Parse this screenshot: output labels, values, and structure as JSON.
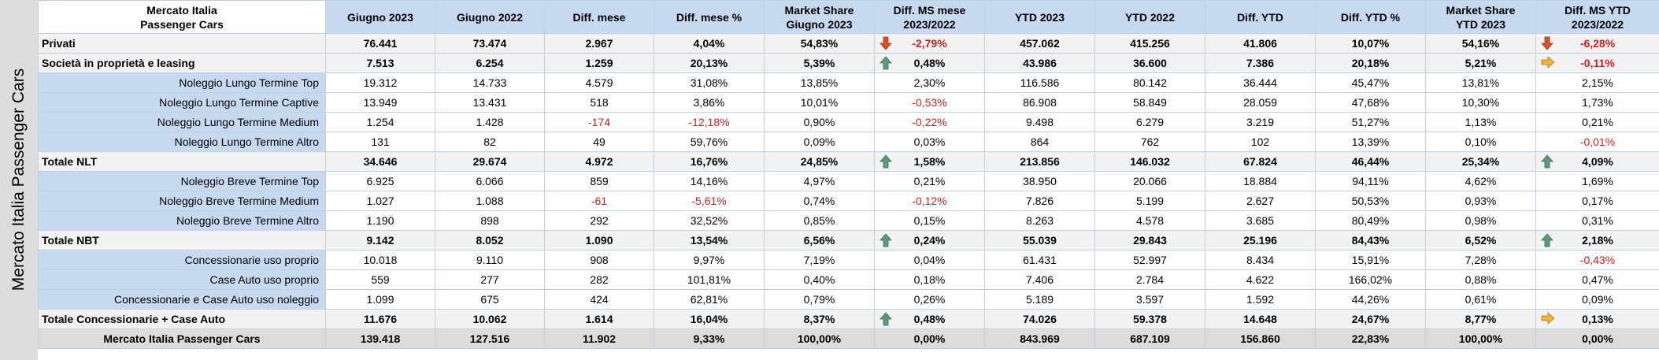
{
  "side_title": "Mercato Italia Passenger Cars",
  "header": {
    "corner": [
      "Mercato Italia",
      "Passenger Cars"
    ],
    "cols": [
      [
        "Giugno 2023"
      ],
      [
        "Giugno 2022"
      ],
      [
        "Diff. mese"
      ],
      [
        "Diff. mese %"
      ],
      [
        "Market Share",
        "Giugno 2023"
      ],
      [
        "Diff. MS mese",
        "2023/2022"
      ],
      [
        "YTD 2023"
      ],
      [
        "YTD 2022"
      ],
      [
        "Diff. YTD"
      ],
      [
        "Diff. YTD %"
      ],
      [
        "Market Share",
        "YTD 2023"
      ],
      [
        "Diff. MS YTD",
        "2023/2022"
      ]
    ]
  },
  "colors": {
    "up_arrow": "#5a9a78",
    "down_arrow": "#d9502b",
    "side_arrow": "#f0b040",
    "negative": "#d02020",
    "header_bg": "#c6d9ef"
  },
  "rows": [
    {
      "label": "Privati",
      "kind": "bold",
      "cells": [
        "76.441",
        "73.474",
        "2.967",
        "4,04%",
        "54,83%",
        "-2,79%",
        "457.062",
        "415.256",
        "41.806",
        "10,07%",
        "54,16%",
        "-6,28%"
      ],
      "icons": [
        "down-arrow-icon",
        "down-arrow-icon"
      ]
    },
    {
      "label": "Società in proprietà e leasing",
      "kind": "bold",
      "cells": [
        "7.513",
        "6.254",
        "1.259",
        "20,13%",
        "5,39%",
        "0,48%",
        "43.986",
        "36.600",
        "7.386",
        "20,18%",
        "5,21%",
        "-0,11%"
      ],
      "icons": [
        "up-arrow-icon",
        "right-arrow-icon"
      ]
    },
    {
      "label": "Noleggio Lungo Termine Top",
      "kind": "sub",
      "cells": [
        "19.312",
        "14.733",
        "4.579",
        "31,08%",
        "13,85%",
        "2,30%",
        "116.586",
        "80.142",
        "36.444",
        "45,47%",
        "13,81%",
        "2,15%"
      ]
    },
    {
      "label": "Noleggio Lungo Termine Captive",
      "kind": "sub",
      "cells": [
        "13.949",
        "13.431",
        "518",
        "3,86%",
        "10,01%",
        "-0,53%",
        "86.908",
        "58.849",
        "28.059",
        "47,68%",
        "10,30%",
        "1,73%"
      ]
    },
    {
      "label": "Noleggio Lungo Termine Medium",
      "kind": "sub",
      "cells": [
        "1.254",
        "1.428",
        "-174",
        "-12,18%",
        "0,90%",
        "-0,22%",
        "9.498",
        "6.279",
        "3.219",
        "51,27%",
        "1,13%",
        "0,21%"
      ]
    },
    {
      "label": "Noleggio Lungo Termine Altro",
      "kind": "sub",
      "cells": [
        "131",
        "82",
        "49",
        "59,76%",
        "0,09%",
        "0,03%",
        "864",
        "762",
        "102",
        "13,39%",
        "0,10%",
        "-0,01%"
      ]
    },
    {
      "label": "Totale NLT",
      "kind": "total",
      "cells": [
        "34.646",
        "29.674",
        "4.972",
        "16,76%",
        "24,85%",
        "1,58%",
        "213.856",
        "146.032",
        "67.824",
        "46,44%",
        "25,34%",
        "4,09%"
      ],
      "icons": [
        "up-arrow-icon",
        "up-arrow-icon"
      ]
    },
    {
      "label": "Noleggio Breve Termine Top",
      "kind": "sub",
      "cells": [
        "6.925",
        "6.066",
        "859",
        "14,16%",
        "4,97%",
        "0,21%",
        "38.950",
        "20.066",
        "18.884",
        "94,11%",
        "4,62%",
        "1,69%"
      ]
    },
    {
      "label": "Noleggio Breve Termine Medium",
      "kind": "sub",
      "cells": [
        "1.027",
        "1.088",
        "-61",
        "-5,61%",
        "0,74%",
        "-0,12%",
        "7.826",
        "5.199",
        "2.627",
        "50,53%",
        "0,93%",
        "0,17%"
      ]
    },
    {
      "label": "Noleggio Breve Termine Altro",
      "kind": "sub",
      "cells": [
        "1.190",
        "898",
        "292",
        "32,52%",
        "0,85%",
        "0,15%",
        "8.263",
        "4.578",
        "3.685",
        "80,49%",
        "0,98%",
        "0,31%"
      ]
    },
    {
      "label": "Totale NBT",
      "kind": "total",
      "cells": [
        "9.142",
        "8.052",
        "1.090",
        "13,54%",
        "6,56%",
        "0,24%",
        "55.039",
        "29.843",
        "25.196",
        "84,43%",
        "6,52%",
        "2,18%"
      ],
      "icons": [
        "up-arrow-icon",
        "up-arrow-icon"
      ]
    },
    {
      "label": "Concessionarie uso proprio",
      "kind": "sub",
      "cells": [
        "10.018",
        "9.110",
        "908",
        "9,97%",
        "7,19%",
        "0,04%",
        "61.431",
        "52.997",
        "8.434",
        "15,91%",
        "7,28%",
        "-0,43%"
      ]
    },
    {
      "label": "Case Auto uso proprio",
      "kind": "sub",
      "cells": [
        "559",
        "277",
        "282",
        "101,81%",
        "0,40%",
        "0,18%",
        "7.406",
        "2.784",
        "4.622",
        "166,02%",
        "0,88%",
        "0,47%"
      ]
    },
    {
      "label": "Concessionarie e Case Auto uso noleggio",
      "kind": "sub",
      "cells": [
        "1.099",
        "675",
        "424",
        "62,81%",
        "0,79%",
        "0,26%",
        "5.189",
        "3.597",
        "1.592",
        "44,26%",
        "0,61%",
        "0,09%"
      ]
    },
    {
      "label": "Totale Concessionarie + Case Auto",
      "kind": "total",
      "cells": [
        "11.676",
        "10.062",
        "1.614",
        "16,04%",
        "8,37%",
        "0,48%",
        "74.026",
        "59.378",
        "14.648",
        "24,67%",
        "8,77%",
        "0,13%"
      ],
      "icons": [
        "up-arrow-icon",
        "right-arrow-icon"
      ]
    },
    {
      "label": "Mercato Italia Passenger Cars",
      "kind": "grand",
      "cells": [
        "139.418",
        "127.516",
        "11.902",
        "9,33%",
        "100,00%",
        "0,00%",
        "843.969",
        "687.109",
        "156.860",
        "22,83%",
        "100,00%",
        "0,00%"
      ]
    }
  ]
}
